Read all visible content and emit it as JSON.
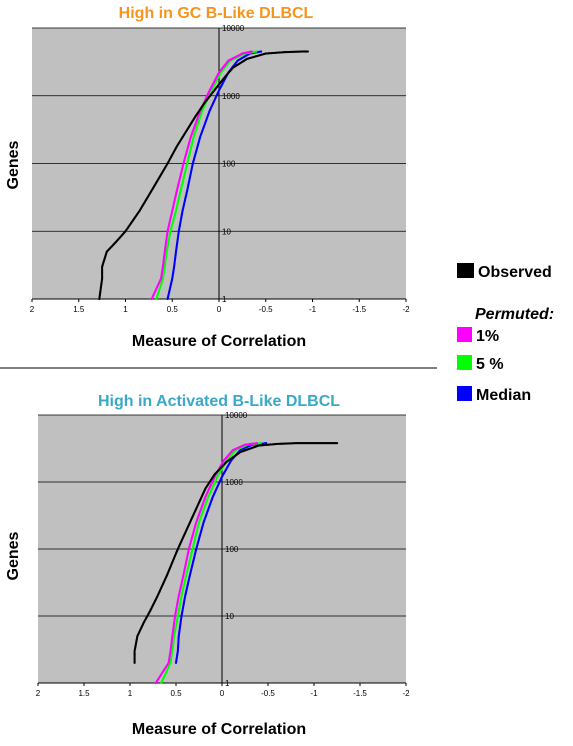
{
  "colors": {
    "plot_bg": "#c0c0c0",
    "grid": "#000000",
    "title_top": "#f7941d",
    "title_bottom": "#39a9c7",
    "observed": "#000000",
    "p1": "#ff00ff",
    "p5": "#00ff00",
    "median": "#0000ff"
  },
  "legend": {
    "observed": "Observed",
    "permuted_heading": "Permuted:",
    "p1": "1%",
    "p5": "5 %",
    "median": "Median"
  },
  "chart_data": [
    {
      "type": "scatter",
      "title": "High in GC B-Like DLBCL",
      "xlabel": "Measure of Correlation",
      "ylabel": "Genes",
      "xlim": [
        2,
        -2
      ],
      "ylim": [
        1,
        10000
      ],
      "yscale": "log",
      "x_ticks": [
        "2",
        "1.5",
        "1",
        "0.5",
        "0",
        "-0.5",
        "-1",
        "-1.5",
        "-2"
      ],
      "y_ticks": [
        "1",
        "10",
        "100",
        "1000",
        "10000"
      ],
      "grid": "horizontal",
      "series": [
        {
          "name": "Observed",
          "color_key": "observed",
          "points": [
            [
              1.28,
              1
            ],
            [
              1.25,
              2
            ],
            [
              1.25,
              3
            ],
            [
              1.2,
              5
            ],
            [
              1.1,
              7
            ],
            [
              1.0,
              10
            ],
            [
              0.85,
              20
            ],
            [
              0.72,
              40
            ],
            [
              0.55,
              100
            ],
            [
              0.45,
              180
            ],
            [
              0.35,
              300
            ],
            [
              0.25,
              500
            ],
            [
              0.15,
              800
            ],
            [
              0.05,
              1200
            ],
            [
              -0.05,
              1800
            ],
            [
              -0.15,
              2600
            ],
            [
              -0.3,
              3500
            ],
            [
              -0.5,
              4200
            ],
            [
              -0.7,
              4400
            ],
            [
              -0.9,
              4500
            ],
            [
              -0.95,
              4500
            ]
          ]
        },
        {
          "name": "1%",
          "color_key": "p1",
          "points": [
            [
              0.72,
              1
            ],
            [
              0.62,
              2
            ],
            [
              0.6,
              3
            ],
            [
              0.58,
              5
            ],
            [
              0.55,
              10
            ],
            [
              0.5,
              20
            ],
            [
              0.45,
              40
            ],
            [
              0.38,
              100
            ],
            [
              0.3,
              250
            ],
            [
              0.2,
              600
            ],
            [
              0.1,
              1200
            ],
            [
              0.0,
              2200
            ],
            [
              -0.1,
              3300
            ],
            [
              -0.25,
              4200
            ],
            [
              -0.35,
              4500
            ]
          ]
        },
        {
          "name": "5 %",
          "color_key": "p5",
          "points": [
            [
              0.67,
              1
            ],
            [
              0.6,
              2
            ],
            [
              0.58,
              3
            ],
            [
              0.56,
              5
            ],
            [
              0.52,
              10
            ],
            [
              0.46,
              20
            ],
            [
              0.41,
              40
            ],
            [
              0.34,
              100
            ],
            [
              0.27,
              250
            ],
            [
              0.18,
              600
            ],
            [
              0.08,
              1200
            ],
            [
              -0.02,
              2200
            ],
            [
              -0.12,
              3300
            ],
            [
              -0.28,
              4200
            ],
            [
              -0.4,
              4500
            ]
          ]
        },
        {
          "name": "Median",
          "color_key": "median",
          "points": [
            [
              0.55,
              1
            ],
            [
              0.5,
              2
            ],
            [
              0.48,
              3
            ],
            [
              0.46,
              5
            ],
            [
              0.43,
              10
            ],
            [
              0.39,
              20
            ],
            [
              0.34,
              40
            ],
            [
              0.28,
              100
            ],
            [
              0.2,
              250
            ],
            [
              0.1,
              600
            ],
            [
              0.0,
              1200
            ],
            [
              -0.1,
              2200
            ],
            [
              -0.2,
              3300
            ],
            [
              -0.33,
              4200
            ],
            [
              -0.45,
              4500
            ]
          ]
        }
      ]
    },
    {
      "type": "scatter",
      "title": "High in Activated B-Like DLBCL",
      "xlabel": "Measure of Correlation",
      "ylabel": "Genes",
      "xlim": [
        2,
        -2
      ],
      "ylim": [
        1,
        10000
      ],
      "yscale": "log",
      "x_ticks": [
        "2",
        "1.5",
        "1",
        "0.5",
        "0",
        "-0.5",
        "-1",
        "-1.5",
        "-2"
      ],
      "y_ticks": [
        "1",
        "10",
        "100",
        "1000",
        "10000"
      ],
      "grid": "horizontal",
      "series": [
        {
          "name": "Observed",
          "color_key": "observed",
          "points": [
            [
              0.95,
              2
            ],
            [
              0.95,
              3
            ],
            [
              0.92,
              5
            ],
            [
              0.85,
              8
            ],
            [
              0.78,
              12
            ],
            [
              0.7,
              20
            ],
            [
              0.6,
              40
            ],
            [
              0.48,
              100
            ],
            [
              0.38,
              200
            ],
            [
              0.28,
              400
            ],
            [
              0.18,
              800
            ],
            [
              0.08,
              1300
            ],
            [
              -0.05,
              2000
            ],
            [
              -0.2,
              2800
            ],
            [
              -0.4,
              3500
            ],
            [
              -0.6,
              3700
            ],
            [
              -0.8,
              3800
            ],
            [
              -1.0,
              3800
            ],
            [
              -1.2,
              3800
            ],
            [
              -1.25,
              3800
            ]
          ]
        },
        {
          "name": "1%",
          "color_key": "p1",
          "points": [
            [
              0.72,
              1
            ],
            [
              0.58,
              2
            ],
            [
              0.56,
              3
            ],
            [
              0.54,
              5
            ],
            [
              0.51,
              10
            ],
            [
              0.47,
              20
            ],
            [
              0.42,
              40
            ],
            [
              0.36,
              100
            ],
            [
              0.28,
              250
            ],
            [
              0.18,
              600
            ],
            [
              0.08,
              1200
            ],
            [
              -0.02,
              2100
            ],
            [
              -0.12,
              3000
            ],
            [
              -0.25,
              3600
            ],
            [
              -0.38,
              3800
            ]
          ]
        },
        {
          "name": "5 %",
          "color_key": "p5",
          "points": [
            [
              0.66,
              1
            ],
            [
              0.56,
              2
            ],
            [
              0.54,
              3
            ],
            [
              0.52,
              5
            ],
            [
              0.48,
              10
            ],
            [
              0.44,
              20
            ],
            [
              0.39,
              40
            ],
            [
              0.32,
              100
            ],
            [
              0.25,
              250
            ],
            [
              0.15,
              600
            ],
            [
              0.05,
              1200
            ],
            [
              -0.05,
              2100
            ],
            [
              -0.15,
              3000
            ],
            [
              -0.28,
              3600
            ],
            [
              -0.42,
              3800
            ]
          ]
        },
        {
          "name": "Median",
          "color_key": "median",
          "points": [
            [
              0.5,
              2
            ],
            [
              0.48,
              3
            ],
            [
              0.47,
              5
            ],
            [
              0.44,
              10
            ],
            [
              0.4,
              20
            ],
            [
              0.35,
              40
            ],
            [
              0.28,
              100
            ],
            [
              0.2,
              250
            ],
            [
              0.1,
              600
            ],
            [
              0.0,
              1200
            ],
            [
              -0.1,
              2100
            ],
            [
              -0.2,
              3000
            ],
            [
              -0.33,
              3600
            ],
            [
              -0.48,
              3800
            ]
          ]
        }
      ]
    }
  ]
}
